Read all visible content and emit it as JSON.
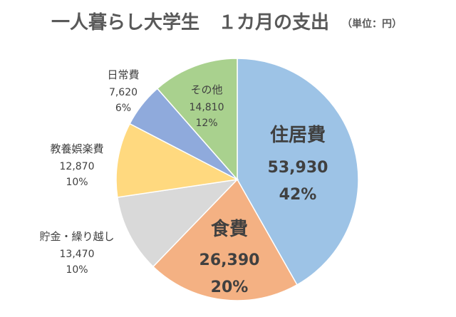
{
  "chart_data": {
    "type": "pie",
    "title": "一人暮らし大学生　１カ月の支出",
    "unit_label": "（単位：円）",
    "slices": [
      {
        "label": "住居費",
        "value": 53930,
        "value_label": "53,930",
        "percent_label": "42%",
        "color": "#9dc3e6"
      },
      {
        "label": "食費",
        "value": 26390,
        "value_label": "26,390",
        "percent_label": "20%",
        "color": "#f4b183"
      },
      {
        "label": "貯金・繰り越し",
        "value": 13470,
        "value_label": "13,470",
        "percent_label": "10%",
        "color": "#d9d9d9"
      },
      {
        "label": "教養娯楽費",
        "value": 12870,
        "value_label": "12,870",
        "percent_label": "10%",
        "color": "#ffd97f"
      },
      {
        "label": "日常費",
        "value": 7620,
        "value_label": "7,620",
        "percent_label": "6%",
        "color": "#8faadc"
      },
      {
        "label": "その他",
        "value": 14810,
        "value_label": "14,810",
        "percent_label": "12%",
        "color": "#a9d18e"
      }
    ],
    "start_angle_deg": 0,
    "direction": "clockwise",
    "legend": "none"
  }
}
